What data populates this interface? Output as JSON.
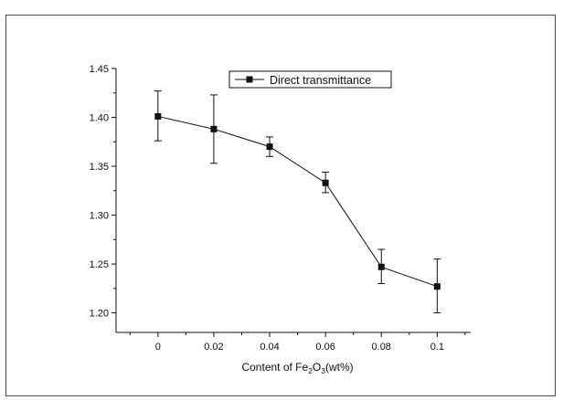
{
  "chart_data": {
    "type": "line",
    "title": "",
    "xlabel": {
      "prefix": "Content of Fe",
      "sub1": "2",
      "mid": "O",
      "sub2": "3",
      "suffix": "(wt%)"
    },
    "ylabel": "",
    "xlim": [
      -0.015,
      0.112
    ],
    "ylim": [
      1.18,
      1.45
    ],
    "x_ticks": [
      {
        "value": 0,
        "label": "0"
      },
      {
        "value": 0.02,
        "label": "0.02"
      },
      {
        "value": 0.04,
        "label": "0.04"
      },
      {
        "value": 0.06,
        "label": "0.06"
      },
      {
        "value": 0.08,
        "label": "0.08"
      },
      {
        "value": 0.1,
        "label": "0.1"
      }
    ],
    "y_ticks": [
      {
        "value": 1.2,
        "label": "1.20"
      },
      {
        "value": 1.25,
        "label": "1.25"
      },
      {
        "value": 1.3,
        "label": "1.30"
      },
      {
        "value": 1.35,
        "label": "1.35"
      },
      {
        "value": 1.4,
        "label": "1.40"
      },
      {
        "value": 1.45,
        "label": "1.45"
      }
    ],
    "legend_position": "top-right",
    "grid": false,
    "series": [
      {
        "name": "Direct transmittance",
        "color": "#111111",
        "marker": "square",
        "x": [
          0,
          0.02,
          0.04,
          0.06,
          0.08,
          0.1
        ],
        "y": [
          1.401,
          1.388,
          1.37,
          1.333,
          1.247,
          1.227
        ],
        "err_low": [
          1.376,
          1.353,
          1.36,
          1.323,
          1.23,
          1.2
        ],
        "err_high": [
          1.427,
          1.423,
          1.38,
          1.344,
          1.265,
          1.255
        ]
      }
    ]
  }
}
